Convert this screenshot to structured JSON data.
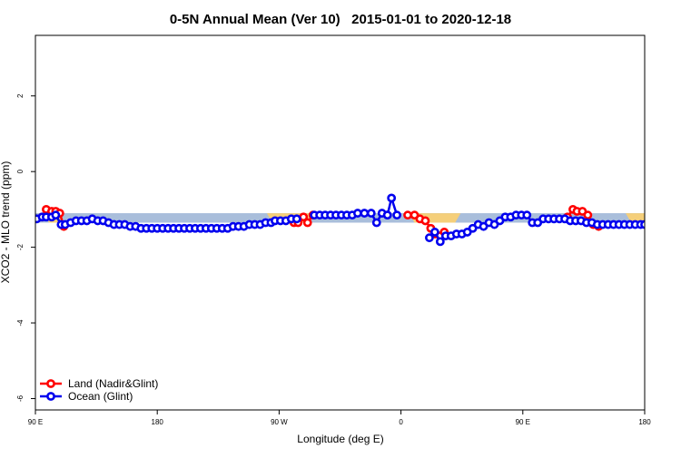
{
  "colors": {
    "land": "#ff0000",
    "ocean": "#0000ee",
    "land_band": "#f5cf7a",
    "ocean_band": "#a9bedb",
    "marker_fill": "#ffffff"
  },
  "chart_data": {
    "type": "line",
    "title": "0-5N Annual Mean (Ver 10)   2015-01-01 to 2020-12-18",
    "xlabel": "Longitude (deg E)",
    "ylabel": "XCO2 - MLO trend (ppm)",
    "xlim": [
      90,
      450
    ],
    "ylim": [
      -6.3,
      3.6
    ],
    "x_unit_note": "longitude east, wrapping past 360",
    "x_ticks": [
      {
        "value": 90,
        "label": "90 E"
      },
      {
        "value": 180,
        "label": "180"
      },
      {
        "value": 270,
        "label": "90 W"
      },
      {
        "value": 360,
        "label": "0"
      },
      {
        "value": 450,
        "label": "90 E"
      }
    ],
    "x_ticks_extra": [
      {
        "value": 540,
        "label": "180"
      }
    ],
    "y_ticks": [
      {
        "value": -6,
        "label": "-6"
      },
      {
        "value": -4,
        "label": "-4"
      },
      {
        "value": -2,
        "label": "-2"
      },
      {
        "value": 0,
        "label": "0"
      },
      {
        "value": 2,
        "label": "2"
      }
    ],
    "grid": false,
    "legend": {
      "position": "bottom-left",
      "entries": [
        "Land (Nadir&Glint)",
        "Ocean (Glint)"
      ]
    },
    "bands": [
      {
        "series": "Ocean (Glint)",
        "x_start": 90,
        "x_end": 540,
        "y_low": -1.35,
        "y_high": -1.1
      },
      {
        "series": "Land (Nadir&Glint)",
        "x_start": 100,
        "x_end": 107,
        "y_low": -1.35,
        "y_high": -1.1
      },
      {
        "series": "Land (Nadir&Glint)",
        "x_start": 265,
        "x_end": 290,
        "y_low": -1.35,
        "y_high": -1.1
      },
      {
        "series": "Land (Nadir&Glint)",
        "x_start": 370,
        "x_end": 400,
        "y_low": -1.35,
        "y_high": -1.1
      },
      {
        "series": "Land (Nadir&Glint)",
        "x_start": 530,
        "x_end": 540,
        "y_low": -1.35,
        "y_high": -1.1
      }
    ],
    "series": [
      {
        "name": "Land (Nadir&Glint)",
        "segments": [
          {
            "x": [
              95,
              98,
              102,
              105,
              108,
              111
            ],
            "y": [
              -1.2,
              -1.0,
              -1.05,
              -1.05,
              -1.1,
              -1.45
            ]
          },
          {
            "x": [
              281,
              284,
              288,
              291,
              295
            ],
            "y": [
              -1.35,
              -1.35,
              -1.2,
              -1.35,
              -1.15
            ]
          },
          {
            "x": [
              365,
              370,
              374,
              378,
              382,
              385,
              389,
              392
            ],
            "y": [
              -1.15,
              -1.15,
              -1.25,
              -1.3,
              -1.5,
              -1.65,
              -1.7,
              -1.6
            ]
          },
          {
            "x": [
              483,
              487,
              490,
              494,
              498
            ],
            "y": [
              -1.2,
              -1.0,
              -1.05,
              -1.05,
              -1.15
            ]
          },
          {
            "x": [
              502,
              506
            ],
            "y": [
              -1.4,
              -1.45
            ]
          }
        ]
      },
      {
        "name": "Ocean (Glint)",
        "segments": [
          {
            "x": [
              91,
              95,
              98,
              102,
              105,
              109,
              112,
              116,
              120,
              124,
              128,
              132,
              136,
              140,
              144,
              148,
              152,
              156,
              160,
              164,
              168,
              172,
              176,
              180,
              184,
              188,
              192,
              196,
              200,
              204,
              208,
              212,
              216,
              220,
              224,
              228,
              232,
              236,
              240,
              244,
              248,
              252,
              256,
              260,
              264,
              267,
              271,
              275,
              279,
              283
            ],
            "y": [
              -1.25,
              -1.2,
              -1.2,
              -1.2,
              -1.15,
              -1.4,
              -1.4,
              -1.35,
              -1.3,
              -1.3,
              -1.3,
              -1.25,
              -1.3,
              -1.3,
              -1.35,
              -1.4,
              -1.4,
              -1.4,
              -1.45,
              -1.45,
              -1.5,
              -1.5,
              -1.5,
              -1.5,
              -1.5,
              -1.5,
              -1.5,
              -1.5,
              -1.5,
              -1.5,
              -1.5,
              -1.5,
              -1.5,
              -1.5,
              -1.5,
              -1.5,
              -1.5,
              -1.45,
              -1.45,
              -1.45,
              -1.4,
              -1.4,
              -1.4,
              -1.35,
              -1.35,
              -1.3,
              -1.3,
              -1.3,
              -1.25,
              -1.25
            ]
          },
          {
            "x": [
              296,
              300,
              304,
              308,
              312,
              316,
              320,
              324,
              328,
              333,
              338,
              342,
              346,
              350
            ],
            "y": [
              -1.15,
              -1.15,
              -1.15,
              -1.15,
              -1.15,
              -1.15,
              -1.15,
              -1.15,
              -1.1,
              -1.1,
              -1.1,
              -1.35,
              -1.1,
              -1.15
            ]
          },
          {
            "x": [
              350,
              353,
              357
            ],
            "y": [
              -1.15,
              -0.7,
              -1.15
            ]
          },
          {
            "x": [
              381,
              385,
              389,
              393,
              397,
              401,
              405,
              409,
              413,
              417,
              421,
              425,
              429,
              433,
              437,
              441,
              445,
              449,
              453,
              457,
              461,
              465,
              469,
              473,
              477,
              481,
              485,
              489,
              493,
              497,
              501,
              505,
              509,
              513,
              517,
              521,
              525,
              529,
              533,
              537,
              540
            ],
            "y": [
              -1.75,
              -1.6,
              -1.85,
              -1.7,
              -1.7,
              -1.65,
              -1.65,
              -1.6,
              -1.5,
              -1.4,
              -1.45,
              -1.35,
              -1.4,
              -1.3,
              -1.2,
              -1.2,
              -1.15,
              -1.15,
              -1.15,
              -1.35,
              -1.35,
              -1.25,
              -1.25,
              -1.25,
              -1.25,
              -1.25,
              -1.3,
              -1.3,
              -1.3,
              -1.35,
              -1.35,
              -1.4,
              -1.4,
              -1.4,
              -1.4,
              -1.4,
              -1.4,
              -1.4,
              -1.4,
              -1.4,
              -1.4
            ]
          }
        ]
      }
    ]
  }
}
